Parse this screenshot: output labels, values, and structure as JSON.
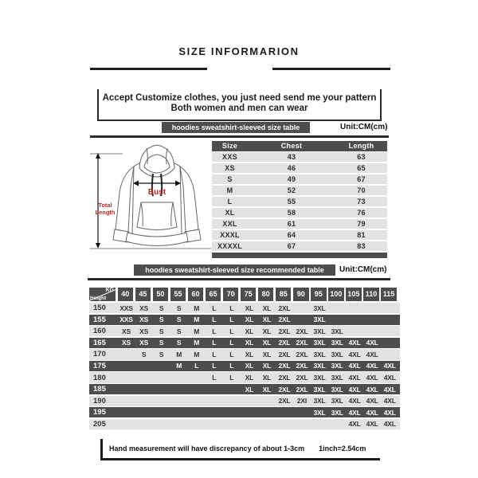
{
  "title": "SIZE INFORMARION",
  "customize_box": {
    "line1": "Accept Customize clothes, you just need send me your pattern",
    "line2": "Both women and men can wear"
  },
  "size_table_section": {
    "header": "hoodies sweatshirt-sleeved size table",
    "unit": "Unit:CM(cm)"
  },
  "hoodie_diagram": {
    "bust_label": "Bust",
    "total_length_label_lines": [
      "Total",
      "Length"
    ]
  },
  "size_table": {
    "columns": [
      "Size",
      "Chest",
      "Length"
    ],
    "rows": [
      [
        "XXS",
        "43",
        "63"
      ],
      [
        "XS",
        "46",
        "65"
      ],
      [
        "S",
        "49",
        "67"
      ],
      [
        "M",
        "52",
        "70"
      ],
      [
        "L",
        "55",
        "73"
      ],
      [
        "XL",
        "58",
        "76"
      ],
      [
        "XXL",
        "61",
        "79"
      ],
      [
        "XXXL",
        "64",
        "81"
      ],
      [
        "XXXXL",
        "67",
        "83"
      ]
    ]
  },
  "recommended_section": {
    "header": "hoodies sweatshirt-sleeved size recommended table",
    "unit": "Unit:CM(cm)"
  },
  "recommended_table": {
    "corner": {
      "top": "KG",
      "bottom": "Height"
    },
    "weights": [
      "40",
      "45",
      "50",
      "55",
      "60",
      "65",
      "70",
      "75",
      "80",
      "85",
      "90",
      "95",
      "100",
      "105",
      "110",
      "115"
    ],
    "rows": [
      {
        "height": "150",
        "cells": [
          "XXS",
          "XS",
          "S",
          "S",
          "M",
          "L",
          "L",
          "XL",
          "XL",
          "2XL",
          "",
          "3XL",
          "",
          "",
          "",
          ""
        ]
      },
      {
        "height": "155",
        "cells": [
          "XXS",
          "XS",
          "S",
          "S",
          "M",
          "L",
          "L",
          "XL",
          "XL",
          "2XL",
          "",
          "3XL",
          "",
          "",
          "",
          ""
        ]
      },
      {
        "height": "160",
        "cells": [
          "XS",
          "XS",
          "S",
          "S",
          "M",
          "L",
          "L",
          "XL",
          "XL",
          "2XL",
          "2XL",
          "3XL",
          "3XL",
          "",
          "",
          ""
        ]
      },
      {
        "height": "165",
        "cells": [
          "XS",
          "XS",
          "S",
          "S",
          "M",
          "L",
          "L",
          "XL",
          "XL",
          "2XL",
          "2XL",
          "3XL",
          "3XL",
          "4XL",
          "4XL",
          ""
        ]
      },
      {
        "height": "170",
        "cells": [
          "",
          "S",
          "S",
          "M",
          "M",
          "L",
          "L",
          "XL",
          "XL",
          "2XL",
          "2XL",
          "3XL",
          "3XL",
          "4XL",
          "4XL",
          ""
        ]
      },
      {
        "height": "175",
        "cells": [
          "",
          "",
          "",
          "M",
          "L",
          "L",
          "L",
          "XL",
          "XL",
          "2XL",
          "2XL",
          "3XL",
          "3XL",
          "4XL",
          "4XL",
          "4XL"
        ]
      },
      {
        "height": "180",
        "cells": [
          "",
          "",
          "",
          "",
          "",
          "L",
          "L",
          "XL",
          "XL",
          "2XL",
          "2XL",
          "3XL",
          "3XL",
          "4XL",
          "4XL",
          "4XL"
        ]
      },
      {
        "height": "185",
        "cells": [
          "",
          "",
          "",
          "",
          "",
          "",
          "",
          "XL",
          "XL",
          "2XL",
          "2XL",
          "3XL",
          "3XL",
          "4XL",
          "4XL",
          "4XL"
        ]
      },
      {
        "height": "190",
        "cells": [
          "",
          "",
          "",
          "",
          "",
          "",
          "",
          "",
          "",
          "2XL",
          "2XI",
          "3XL",
          "3XL",
          "4XL",
          "4XL",
          "4XL"
        ]
      },
      {
        "height": "195",
        "cells": [
          "",
          "",
          "",
          "",
          "",
          "",
          "",
          "",
          "",
          "",
          "",
          "3XL",
          "3XL",
          "4XL",
          "4XL",
          "4XL"
        ]
      },
      {
        "height": "205",
        "cells": [
          "",
          "",
          "",
          "",
          "",
          "",
          "",
          "",
          "",
          "",
          "",
          "",
          "",
          "4XL",
          "4XL",
          "4XL"
        ]
      }
    ]
  },
  "footer": {
    "note": "Hand measurement will have discrepancy of about  1-3cm",
    "conversion": "1inch=2.54cm"
  },
  "colors": {
    "dark_bar": "#4d4d4d",
    "light_stripe": "#e2e2e2",
    "accent_red": "#c22822",
    "line": "#1e1e1e"
  }
}
